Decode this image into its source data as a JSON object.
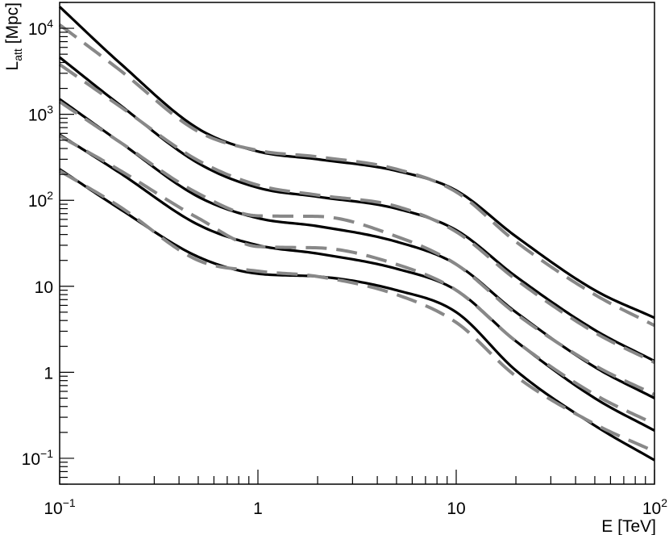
{
  "chart_data": {
    "type": "line",
    "title": "",
    "xlabel": "E [TeV]",
    "ylabel": {
      "main": "L",
      "sub": "att",
      "unit": " [Mpc]"
    },
    "x_scale": "log",
    "y_scale": "log",
    "xlim": [
      0.1,
      100
    ],
    "ylim": [
      0.05,
      20000
    ],
    "grid": false,
    "legend": "none",
    "x_ticks": [
      {
        "value": 0.1,
        "base": "10",
        "exp": "−1"
      },
      {
        "value": 1,
        "base": "1",
        "exp": ""
      },
      {
        "value": 10,
        "base": "10",
        "exp": ""
      },
      {
        "value": 100,
        "base": "10",
        "exp": "2"
      }
    ],
    "y_ticks": [
      {
        "value": 0.1,
        "base": "10",
        "exp": "−1"
      },
      {
        "value": 1,
        "base": "1",
        "exp": ""
      },
      {
        "value": 10,
        "base": "10",
        "exp": ""
      },
      {
        "value": 100,
        "base": "10",
        "exp": "2"
      },
      {
        "value": 1000,
        "base": "10",
        "exp": "3"
      },
      {
        "value": 10000,
        "base": "10",
        "exp": "4"
      }
    ],
    "colors": {
      "solid": "#000000",
      "dashed": "#888888",
      "frame": "#000000"
    },
    "series": [
      {
        "style": "solid",
        "x": [
          0.1,
          0.2,
          0.5,
          1,
          2,
          5,
          10,
          20,
          50,
          100
        ],
        "y": [
          17800,
          4000,
          680,
          370,
          300,
          220,
          130,
          38,
          9,
          4.3
        ]
      },
      {
        "style": "dashed",
        "x": [
          0.1,
          0.2,
          0.5,
          1,
          2,
          5,
          10,
          20,
          50,
          100
        ],
        "y": [
          11000,
          3300,
          630,
          380,
          320,
          230,
          125,
          33,
          8,
          3.5
        ]
      },
      {
        "style": "solid",
        "x": [
          0.1,
          0.2,
          0.5,
          1,
          2,
          5,
          10,
          20,
          50,
          100
        ],
        "y": [
          4600,
          1300,
          270,
          140,
          110,
          80,
          45,
          13,
          3.1,
          1.35
        ]
      },
      {
        "style": "dashed",
        "x": [
          0.1,
          0.2,
          0.5,
          1,
          2,
          5,
          10,
          20,
          50,
          100
        ],
        "y": [
          3800,
          1250,
          290,
          150,
          115,
          85,
          43,
          12,
          2.9,
          1.3
        ]
      },
      {
        "style": "solid",
        "x": [
          0.1,
          0.2,
          0.5,
          1,
          2,
          5,
          10,
          20,
          50,
          100
        ],
        "y": [
          1500,
          480,
          110,
          62,
          50,
          33,
          18,
          5,
          1.15,
          0.5
        ]
      },
      {
        "style": "dashed",
        "x": [
          0.1,
          0.2,
          0.5,
          1,
          2,
          5,
          10,
          20,
          50,
          100
        ],
        "y": [
          1400,
          480,
          120,
          66,
          65,
          38,
          18,
          4.8,
          1.2,
          0.55
        ]
      },
      {
        "style": "solid",
        "x": [
          0.1,
          0.2,
          0.5,
          1,
          2,
          5,
          10,
          20,
          50,
          100
        ],
        "y": [
          580,
          210,
          52,
          30,
          24,
          16,
          9,
          2.3,
          0.5,
          0.21
        ]
      },
      {
        "style": "dashed",
        "x": [
          0.1,
          0.2,
          0.5,
          1,
          2,
          5,
          10,
          20,
          50,
          100
        ],
        "y": [
          560,
          225,
          62,
          29,
          28,
          18,
          9,
          2.3,
          0.55,
          0.25
        ]
      },
      {
        "style": "solid",
        "x": [
          0.1,
          0.2,
          0.5,
          1,
          2,
          5,
          10,
          20,
          50,
          100
        ],
        "y": [
          230,
          80,
          22,
          14,
          13,
          9,
          5,
          1.05,
          0.24,
          0.095
        ]
      },
      {
        "style": "dashed",
        "x": [
          0.1,
          0.2,
          0.5,
          1,
          2,
          5,
          10,
          20,
          50,
          100
        ],
        "y": [
          220,
          85,
          20,
          15,
          13,
          8,
          3.8,
          0.9,
          0.25,
          0.12
        ]
      }
    ]
  }
}
